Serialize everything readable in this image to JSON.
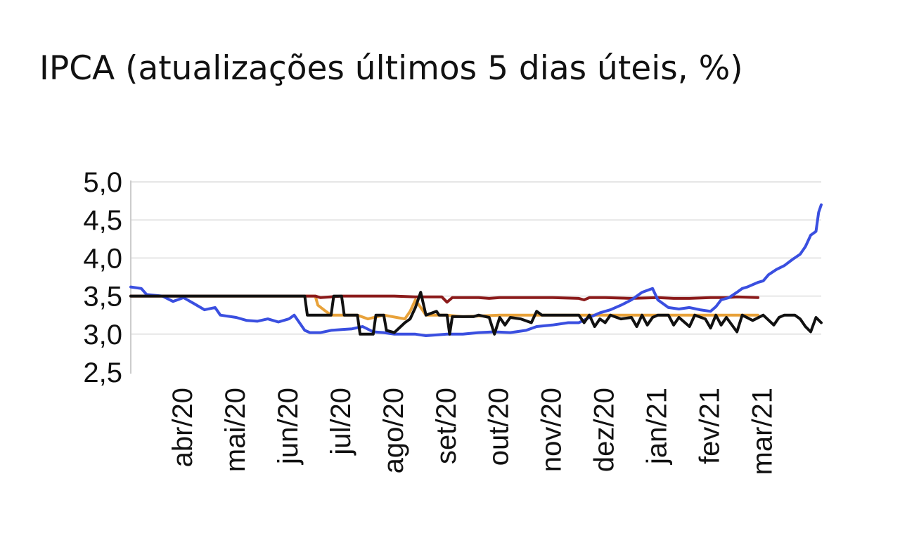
{
  "chart_data": {
    "type": "line",
    "title": "IPCA (atualizações últimos 5 dias úteis, %)",
    "xlabel": "",
    "ylabel": "",
    "ylim": [
      2.5,
      5.0
    ],
    "y_ticks": [
      "5,0",
      "4,5",
      "4,0",
      "3,5",
      "3,0",
      "2,5"
    ],
    "y_tick_values": [
      5.0,
      4.5,
      4.0,
      3.5,
      3.0,
      2.5
    ],
    "x_tick_labels": [
      "abr/20",
      "mai/20",
      "jun/20",
      "jul/20",
      "ago/20",
      "set/20",
      "out/20",
      "nov/20",
      "dez/20",
      "jan/21",
      "fev/21",
      "mar/21"
    ],
    "grid": "horizontal",
    "legend": "none",
    "x_unit": "months since mar/20",
    "series": [
      {
        "color": "#e8a23a",
        "points": [
          [
            0,
            3.5
          ],
          [
            3.5,
            3.5
          ],
          [
            3.55,
            3.38
          ],
          [
            3.7,
            3.3
          ],
          [
            3.8,
            3.25
          ],
          [
            4.3,
            3.25
          ],
          [
            4.5,
            3.2
          ],
          [
            4.8,
            3.25
          ],
          [
            5.2,
            3.2
          ],
          [
            5.3,
            3.3
          ],
          [
            5.4,
            3.45
          ],
          [
            5.6,
            3.25
          ],
          [
            6.0,
            3.25
          ],
          [
            6.3,
            3.23
          ],
          [
            7.0,
            3.25
          ],
          [
            8.0,
            3.25
          ],
          [
            9.0,
            3.25
          ],
          [
            10.0,
            3.25
          ],
          [
            11.0,
            3.25
          ],
          [
            11.9,
            3.25
          ]
        ]
      },
      {
        "color": "#8b1a1a",
        "points": [
          [
            0,
            3.5
          ],
          [
            3.5,
            3.5
          ],
          [
            3.6,
            3.48
          ],
          [
            4.0,
            3.5
          ],
          [
            5.0,
            3.5
          ],
          [
            5.4,
            3.49
          ],
          [
            5.9,
            3.49
          ],
          [
            6.0,
            3.42
          ],
          [
            6.1,
            3.48
          ],
          [
            6.6,
            3.48
          ],
          [
            6.8,
            3.47
          ],
          [
            7.0,
            3.48
          ],
          [
            7.5,
            3.48
          ],
          [
            8.0,
            3.48
          ],
          [
            8.5,
            3.47
          ],
          [
            8.6,
            3.45
          ],
          [
            8.7,
            3.48
          ],
          [
            9.0,
            3.48
          ],
          [
            9.5,
            3.47
          ],
          [
            10.0,
            3.48
          ],
          [
            10.3,
            3.47
          ],
          [
            10.6,
            3.47
          ],
          [
            11.0,
            3.48
          ],
          [
            11.3,
            3.48
          ],
          [
            11.5,
            3.49
          ],
          [
            11.9,
            3.48
          ]
        ]
      },
      {
        "color": "#3a4fe0",
        "points": [
          [
            0,
            3.62
          ],
          [
            0.2,
            3.6
          ],
          [
            0.3,
            3.52
          ],
          [
            0.6,
            3.5
          ],
          [
            0.8,
            3.43
          ],
          [
            1.0,
            3.48
          ],
          [
            1.2,
            3.4
          ],
          [
            1.4,
            3.32
          ],
          [
            1.6,
            3.35
          ],
          [
            1.7,
            3.25
          ],
          [
            2.0,
            3.22
          ],
          [
            2.2,
            3.18
          ],
          [
            2.4,
            3.17
          ],
          [
            2.6,
            3.2
          ],
          [
            2.8,
            3.16
          ],
          [
            3.0,
            3.2
          ],
          [
            3.1,
            3.25
          ],
          [
            3.2,
            3.15
          ],
          [
            3.3,
            3.05
          ],
          [
            3.4,
            3.02
          ],
          [
            3.6,
            3.02
          ],
          [
            3.8,
            3.05
          ],
          [
            4.0,
            3.06
          ],
          [
            4.2,
            3.07
          ],
          [
            4.4,
            3.1
          ],
          [
            4.6,
            3.03
          ],
          [
            4.8,
            3.02
          ],
          [
            5.0,
            3.0
          ],
          [
            5.2,
            3.0
          ],
          [
            5.4,
            3.0
          ],
          [
            5.6,
            2.98
          ],
          [
            6.0,
            3.0
          ],
          [
            6.3,
            3.0
          ],
          [
            6.6,
            3.02
          ],
          [
            6.9,
            3.03
          ],
          [
            7.2,
            3.02
          ],
          [
            7.5,
            3.05
          ],
          [
            7.7,
            3.1
          ],
          [
            8.0,
            3.12
          ],
          [
            8.3,
            3.15
          ],
          [
            8.5,
            3.15
          ],
          [
            8.7,
            3.22
          ],
          [
            8.9,
            3.28
          ],
          [
            9.1,
            3.32
          ],
          [
            9.3,
            3.38
          ],
          [
            9.5,
            3.45
          ],
          [
            9.7,
            3.55
          ],
          [
            9.9,
            3.6
          ],
          [
            10.0,
            3.45
          ],
          [
            10.2,
            3.35
          ],
          [
            10.4,
            3.33
          ],
          [
            10.6,
            3.35
          ],
          [
            10.8,
            3.32
          ],
          [
            11.0,
            3.3
          ],
          [
            11.1,
            3.36
          ],
          [
            11.2,
            3.45
          ],
          [
            11.35,
            3.48
          ],
          [
            11.5,
            3.55
          ],
          [
            11.6,
            3.6
          ],
          [
            11.7,
            3.62
          ],
          [
            11.8,
            3.65
          ],
          [
            11.9,
            3.68
          ],
          [
            12.0,
            3.7
          ],
          [
            12.1,
            3.78
          ],
          [
            12.25,
            3.85
          ],
          [
            12.4,
            3.9
          ],
          [
            12.55,
            3.98
          ],
          [
            12.7,
            4.05
          ],
          [
            12.8,
            4.15
          ],
          [
            12.9,
            4.3
          ],
          [
            13.0,
            4.35
          ],
          [
            13.05,
            4.6
          ],
          [
            13.1,
            4.7
          ]
        ]
      },
      {
        "color": "#111111",
        "points": [
          [
            0,
            3.5
          ],
          [
            3.3,
            3.5
          ],
          [
            3.35,
            3.25
          ],
          [
            3.8,
            3.25
          ],
          [
            3.85,
            3.5
          ],
          [
            4.0,
            3.5
          ],
          [
            4.05,
            3.25
          ],
          [
            4.3,
            3.25
          ],
          [
            4.35,
            3.0
          ],
          [
            4.6,
            3.0
          ],
          [
            4.65,
            3.25
          ],
          [
            4.8,
            3.25
          ],
          [
            4.85,
            3.05
          ],
          [
            5.0,
            3.02
          ],
          [
            5.2,
            3.15
          ],
          [
            5.3,
            3.2
          ],
          [
            5.4,
            3.35
          ],
          [
            5.5,
            3.55
          ],
          [
            5.6,
            3.25
          ],
          [
            5.8,
            3.3
          ],
          [
            5.85,
            3.25
          ],
          [
            6.0,
            3.25
          ],
          [
            6.05,
            3.0
          ],
          [
            6.1,
            3.23
          ],
          [
            6.5,
            3.23
          ],
          [
            6.6,
            3.25
          ],
          [
            6.8,
            3.22
          ],
          [
            6.9,
            3.0
          ],
          [
            7.0,
            3.22
          ],
          [
            7.1,
            3.12
          ],
          [
            7.2,
            3.22
          ],
          [
            7.4,
            3.2
          ],
          [
            7.6,
            3.15
          ],
          [
            7.7,
            3.3
          ],
          [
            7.8,
            3.25
          ],
          [
            8.0,
            3.25
          ],
          [
            8.5,
            3.25
          ],
          [
            8.6,
            3.15
          ],
          [
            8.7,
            3.25
          ],
          [
            8.8,
            3.1
          ],
          [
            8.9,
            3.2
          ],
          [
            9.0,
            3.15
          ],
          [
            9.1,
            3.25
          ],
          [
            9.3,
            3.2
          ],
          [
            9.5,
            3.22
          ],
          [
            9.6,
            3.1
          ],
          [
            9.7,
            3.25
          ],
          [
            9.8,
            3.12
          ],
          [
            9.9,
            3.22
          ],
          [
            10.0,
            3.25
          ],
          [
            10.2,
            3.25
          ],
          [
            10.3,
            3.12
          ],
          [
            10.4,
            3.22
          ],
          [
            10.6,
            3.1
          ],
          [
            10.7,
            3.25
          ],
          [
            10.9,
            3.2
          ],
          [
            11.0,
            3.08
          ],
          [
            11.1,
            3.25
          ],
          [
            11.2,
            3.12
          ],
          [
            11.3,
            3.22
          ],
          [
            11.5,
            3.03
          ],
          [
            11.6,
            3.25
          ],
          [
            11.8,
            3.18
          ],
          [
            12.0,
            3.25
          ],
          [
            12.2,
            3.12
          ],
          [
            12.3,
            3.22
          ],
          [
            12.4,
            3.25
          ],
          [
            12.6,
            3.25
          ],
          [
            12.7,
            3.2
          ],
          [
            12.8,
            3.1
          ],
          [
            12.9,
            3.03
          ],
          [
            13.0,
            3.22
          ],
          [
            13.1,
            3.15
          ]
        ]
      }
    ]
  }
}
